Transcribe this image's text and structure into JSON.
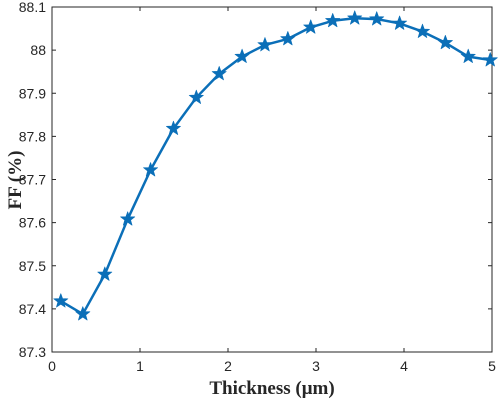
{
  "chart_data": {
    "type": "line",
    "xlabel": "Thickness (μm)",
    "ylabel": "FF (%)",
    "xlim": [
      0,
      5
    ],
    "ylim": [
      87.3,
      88.1
    ],
    "xticks": [
      0,
      1,
      2,
      3,
      4,
      5
    ],
    "xtick_labels": [
      "0",
      "1",
      "2",
      "3",
      "4",
      "5"
    ],
    "yticks": [
      87.3,
      87.4,
      87.5,
      87.6,
      87.7,
      87.8,
      87.9,
      88.0,
      88.1
    ],
    "ytick_labels": [
      "87.3",
      "87.4",
      "87.5",
      "87.6",
      "87.7",
      "87.8",
      "87.9",
      "88",
      "88.1"
    ],
    "grid": false,
    "marker": "star",
    "color": "#0b6fb8",
    "series": [
      {
        "x": [
          0.1,
          0.35,
          0.6,
          0.86,
          1.12,
          1.38,
          1.64,
          1.9,
          2.16,
          2.42,
          2.68,
          2.94,
          3.19,
          3.44,
          3.69,
          3.95,
          4.21,
          4.47,
          4.73,
          4.98
        ],
        "y": [
          87.418,
          87.388,
          87.48,
          87.608,
          87.722,
          87.818,
          87.89,
          87.945,
          87.985,
          88.012,
          88.026,
          88.053,
          88.068,
          88.074,
          88.072,
          88.062,
          88.043,
          88.017,
          87.985,
          87.977
        ]
      }
    ]
  }
}
